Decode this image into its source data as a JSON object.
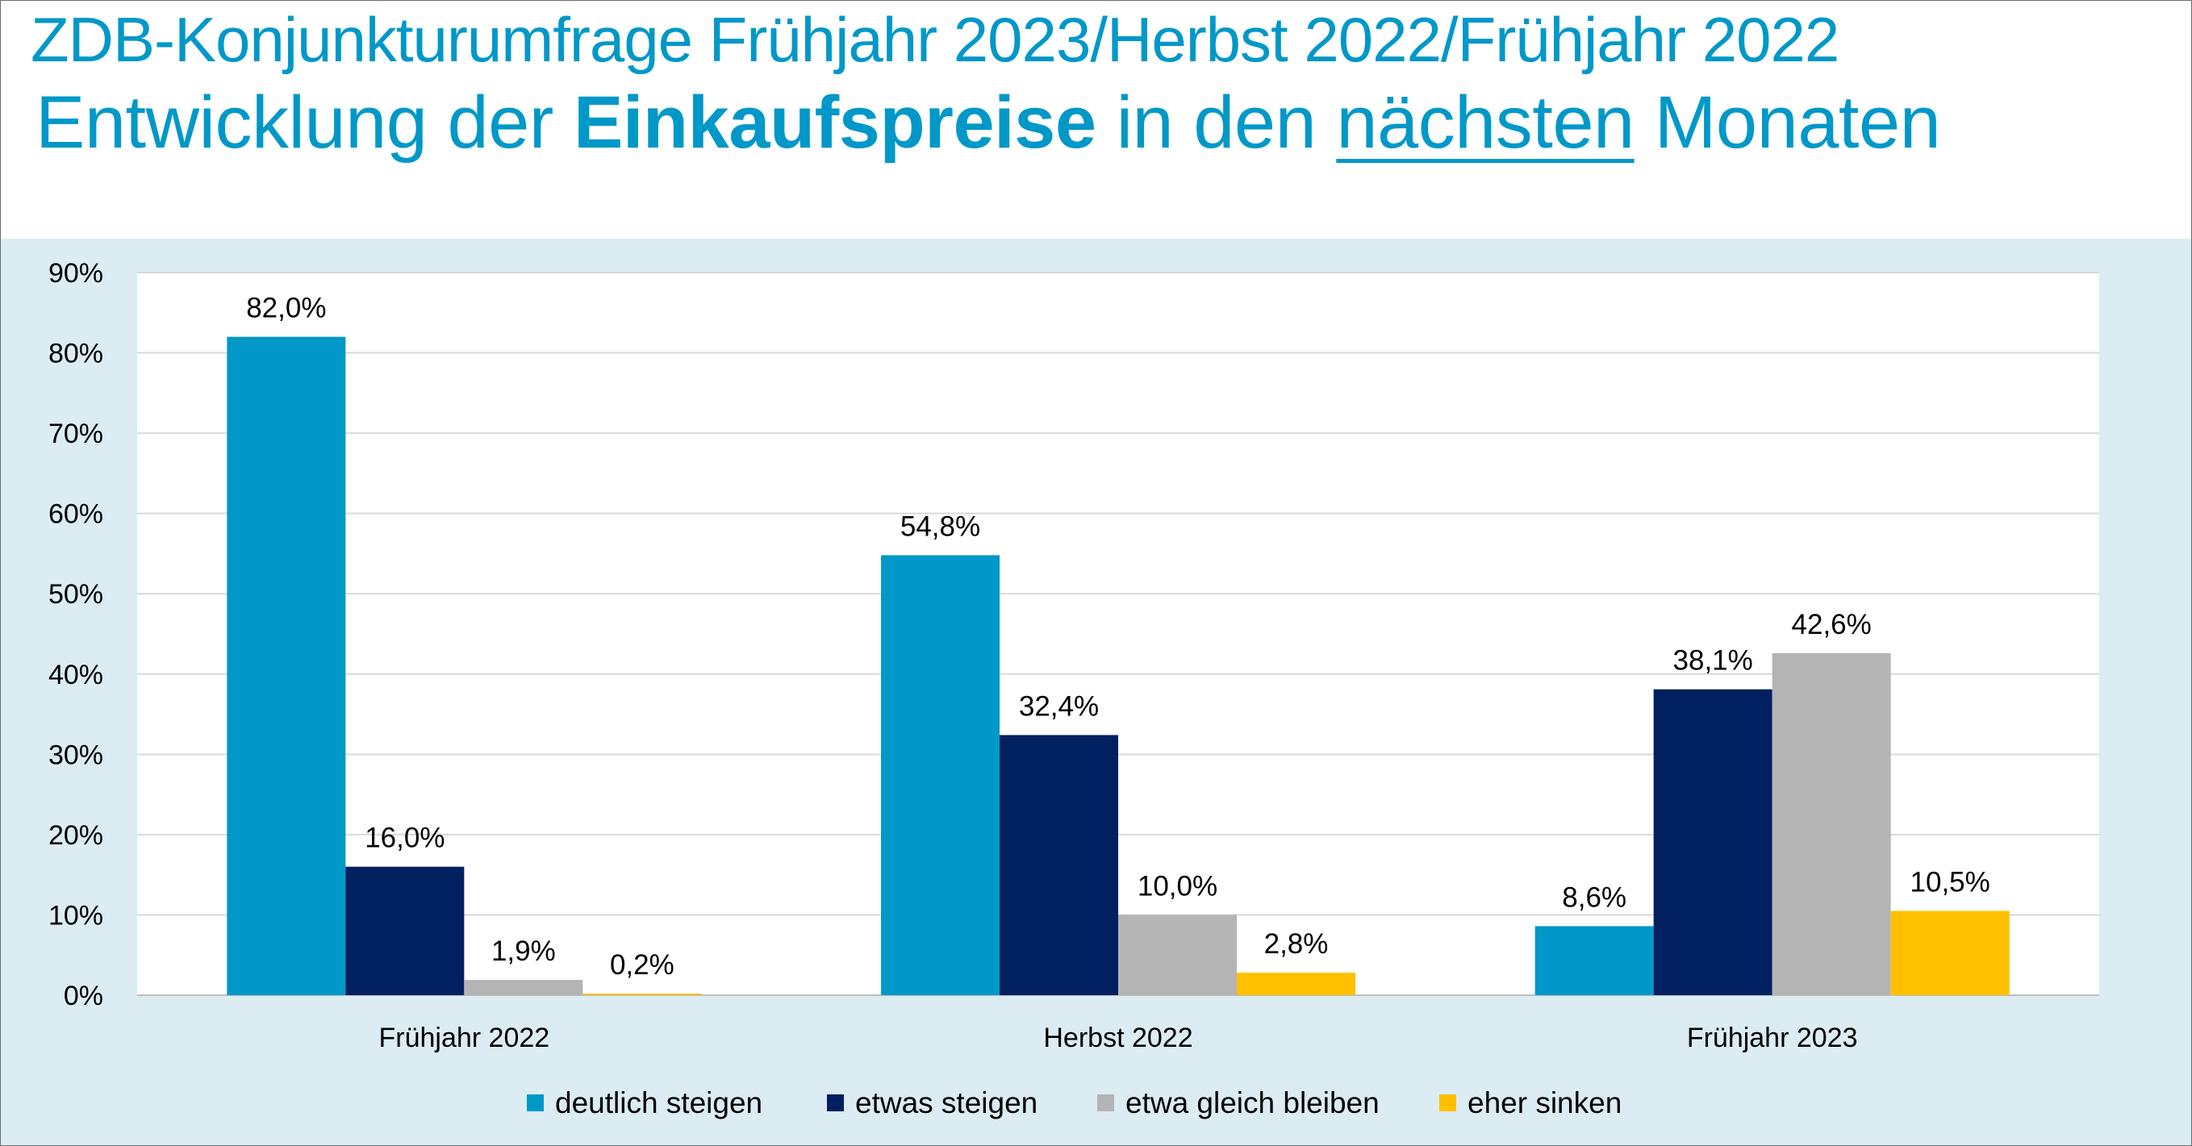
{
  "header": {
    "title_line1": "ZDB-Konjunkturumfrage Frühjahr 2023/Herbst 2022/Frühjahr 2022",
    "title_line2_part1": "Entwicklung der ",
    "title_line2_bold": "Einkaufspreise",
    "title_line2_part2": " in den ",
    "title_line2_underlined": "nächsten",
    "title_line2_part3": " Monaten"
  },
  "colors": {
    "title": "#0098c8",
    "panel_background": "#dbecf3",
    "plot_background": "#ffffff",
    "gridline": "#d9d9d9"
  },
  "chart_data": {
    "type": "bar",
    "categories": [
      "Frühjahr 2022",
      "Herbst 2022",
      "Frühjahr 2023"
    ],
    "series": [
      {
        "name": "deutlich steigen",
        "color": "#0098c8",
        "values": [
          82.0,
          54.8,
          8.6
        ],
        "labels": [
          "82,0%",
          "54,8%",
          "8,6%"
        ]
      },
      {
        "name": "etwas steigen",
        "color": "#002060",
        "values": [
          16.0,
          32.4,
          38.1
        ],
        "labels": [
          "16,0%",
          "32,4%",
          "38,1%"
        ]
      },
      {
        "name": "etwa gleich bleiben",
        "color": "#b4b4b4",
        "values": [
          1.9,
          10.0,
          42.6
        ],
        "labels": [
          "1,9%",
          "10,0%",
          "42,6%"
        ]
      },
      {
        "name": "eher sinken",
        "color": "#ffc000",
        "values": [
          0.2,
          2.8,
          10.5
        ],
        "labels": [
          "0,2%",
          "2,8%",
          "10,5%"
        ]
      }
    ],
    "y_ticks": [
      "0%",
      "10%",
      "20%",
      "30%",
      "40%",
      "50%",
      "60%",
      "70%",
      "80%",
      "90%"
    ],
    "ylim": [
      0,
      90
    ],
    "grid": true,
    "legend_position": "bottom"
  }
}
